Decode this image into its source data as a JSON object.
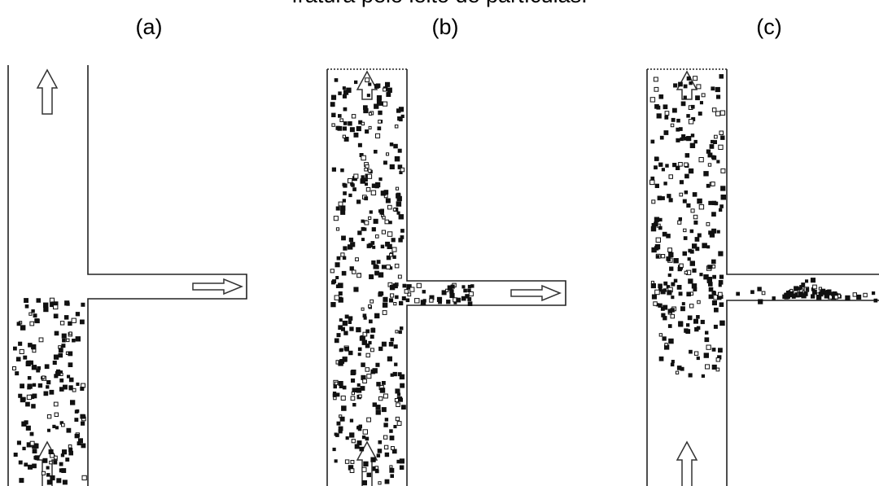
{
  "caption": "fratura pelo leito de partículas.",
  "panels": [
    {
      "label": "(a)"
    },
    {
      "label": "(b)"
    },
    {
      "label": "(c)"
    }
  ]
}
